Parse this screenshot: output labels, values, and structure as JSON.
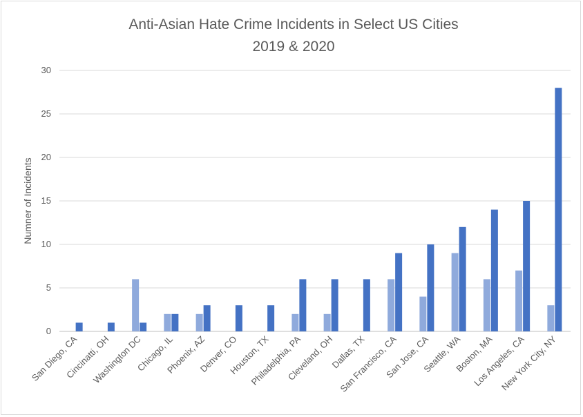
{
  "chart_data": {
    "type": "bar",
    "title": "Anti-Asian Hate Crime Incidents in Select US Cities",
    "subtitle": "2019 & 2020",
    "xlabel": "",
    "ylabel": "Numner of Incidents",
    "ylim": [
      0,
      30
    ],
    "yticks": [
      "0",
      "5",
      "10",
      "15",
      "20",
      "25",
      "30"
    ],
    "grid": true,
    "legend": "none",
    "categories": [
      "San Diego, CA",
      "Cincinatti, OH",
      "Washington DC",
      "Chicago, IL",
      "Phoenix, AZ",
      "Denver, CO",
      "Houston, TX",
      "Philadelphia, PA",
      "Cleveland, OH",
      "Dallas, TX",
      "San Francisco, CA",
      "San Jose, CA",
      "Seattle, WA",
      "Boston, MA",
      "Los Angeles, CA",
      "New York City, NY"
    ],
    "series": [
      {
        "color": "#8faadc",
        "values": [
          0,
          0,
          6,
          2,
          2,
          0,
          0,
          2,
          2,
          0,
          6,
          4,
          9,
          6,
          7,
          3
        ]
      },
      {
        "color": "#4472c4",
        "values": [
          1,
          1,
          1,
          2,
          3,
          3,
          3,
          6,
          6,
          6,
          9,
          10,
          12,
          14,
          15,
          28
        ]
      }
    ]
  }
}
